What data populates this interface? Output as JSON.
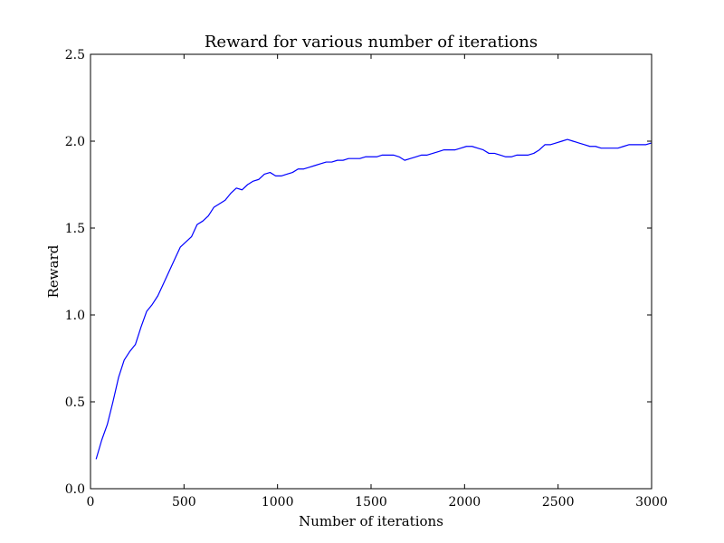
{
  "chart_data": {
    "type": "line",
    "title": "Reward for various number of iterations",
    "xlabel": "Number of iterations",
    "ylabel": "Reward",
    "xlim": [
      0,
      3000
    ],
    "ylim": [
      0.0,
      2.5
    ],
    "xticks": [
      0,
      500,
      1000,
      1500,
      2000,
      2500,
      3000
    ],
    "xtick_labels": [
      "0",
      "500",
      "1000",
      "1500",
      "2000",
      "2500",
      "3000"
    ],
    "yticks": [
      0.0,
      0.5,
      1.0,
      1.5,
      2.0,
      2.5
    ],
    "ytick_labels": [
      "0.0",
      "0.5",
      "1.0",
      "1.5",
      "2.0",
      "2.5"
    ],
    "grid": false,
    "legend": "none",
    "series": [
      {
        "color": "#0000ff",
        "x": [
          30,
          60,
          90,
          120,
          150,
          180,
          210,
          240,
          270,
          300,
          330,
          360,
          390,
          420,
          450,
          480,
          510,
          540,
          570,
          600,
          630,
          660,
          690,
          720,
          750,
          780,
          810,
          840,
          870,
          900,
          930,
          960,
          990,
          1020,
          1050,
          1080,
          1110,
          1140,
          1170,
          1200,
          1230,
          1260,
          1290,
          1320,
          1350,
          1380,
          1410,
          1440,
          1470,
          1500,
          1530,
          1560,
          1590,
          1620,
          1650,
          1680,
          1710,
          1740,
          1770,
          1800,
          1830,
          1860,
          1890,
          1920,
          1950,
          1980,
          2010,
          2040,
          2070,
          2100,
          2130,
          2160,
          2190,
          2220,
          2250,
          2280,
          2310,
          2340,
          2370,
          2400,
          2430,
          2460,
          2490,
          2520,
          2550,
          2580,
          2610,
          2640,
          2670,
          2700,
          2730,
          2760,
          2790,
          2820,
          2850,
          2880,
          2910,
          2940,
          2970,
          3000
        ],
        "y": [
          0.17,
          0.28,
          0.37,
          0.5,
          0.64,
          0.74,
          0.79,
          0.83,
          0.93,
          1.02,
          1.06,
          1.11,
          1.18,
          1.25,
          1.32,
          1.39,
          1.42,
          1.45,
          1.52,
          1.54,
          1.57,
          1.62,
          1.64,
          1.66,
          1.7,
          1.73,
          1.72,
          1.75,
          1.77,
          1.78,
          1.81,
          1.82,
          1.8,
          1.8,
          1.81,
          1.82,
          1.84,
          1.84,
          1.85,
          1.86,
          1.87,
          1.88,
          1.88,
          1.89,
          1.89,
          1.9,
          1.9,
          1.9,
          1.91,
          1.91,
          1.91,
          1.92,
          1.92,
          1.92,
          1.91,
          1.89,
          1.9,
          1.91,
          1.92,
          1.92,
          1.93,
          1.94,
          1.95,
          1.95,
          1.95,
          1.96,
          1.97,
          1.97,
          1.96,
          1.95,
          1.93,
          1.93,
          1.92,
          1.91,
          1.91,
          1.92,
          1.92,
          1.92,
          1.93,
          1.95,
          1.98,
          1.98,
          1.99,
          2.0,
          2.01,
          2.0,
          1.99,
          1.98,
          1.97,
          1.97,
          1.96,
          1.96,
          1.96,
          1.96,
          1.97,
          1.98,
          1.98,
          1.98,
          1.98,
          1.99
        ]
      }
    ]
  }
}
